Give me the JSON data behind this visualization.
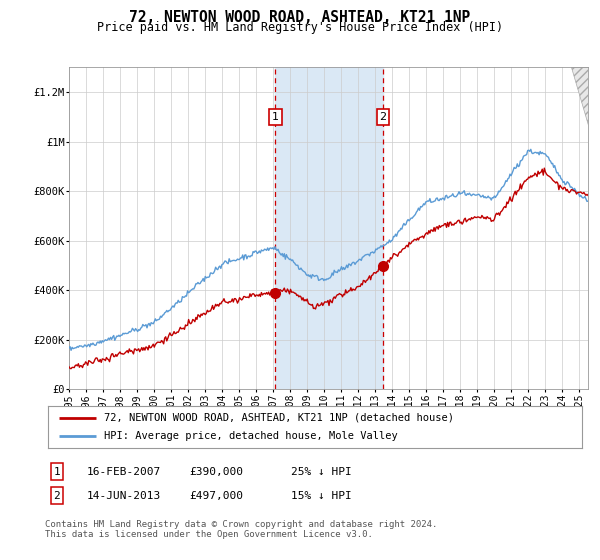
{
  "title": "72, NEWTON WOOD ROAD, ASHTEAD, KT21 1NP",
  "subtitle": "Price paid vs. HM Land Registry's House Price Index (HPI)",
  "legend_line1": "72, NEWTON WOOD ROAD, ASHTEAD, KT21 1NP (detached house)",
  "legend_line2": "HPI: Average price, detached house, Mole Valley",
  "footnote": "Contains HM Land Registry data © Crown copyright and database right 2024.\nThis data is licensed under the Open Government Licence v3.0.",
  "hpi_color": "#5b9bd5",
  "price_color": "#c00000",
  "marker1_date": 2007.12,
  "marker2_date": 2013.46,
  "marker1_price": 390000,
  "marker2_price": 497000,
  "shade_color": "#dae8f5",
  "ylim": [
    0,
    1300000
  ],
  "xlim_start": 1995.0,
  "xlim_end": 2025.5,
  "yticks": [
    0,
    200000,
    400000,
    600000,
    800000,
    1000000,
    1200000
  ],
  "ytick_labels": [
    "£0",
    "£200K",
    "£400K",
    "£600K",
    "£800K",
    "£1M",
    "£1.2M"
  ],
  "xticks": [
    1995,
    1996,
    1997,
    1998,
    1999,
    2000,
    2001,
    2002,
    2003,
    2004,
    2005,
    2006,
    2007,
    2008,
    2009,
    2010,
    2011,
    2012,
    2013,
    2014,
    2015,
    2016,
    2017,
    2018,
    2019,
    2020,
    2021,
    2022,
    2023,
    2024,
    2025
  ],
  "annotation1": {
    "label": "1",
    "date": 2007.12,
    "price": 390000,
    "text_date": "16-FEB-2007",
    "amount": "£390,000",
    "pct": "25% ↓ HPI"
  },
  "annotation2": {
    "label": "2",
    "date": 2013.46,
    "price": 497000,
    "text_date": "14-JUN-2013",
    "amount": "£497,000",
    "pct": "15% ↓ HPI"
  }
}
